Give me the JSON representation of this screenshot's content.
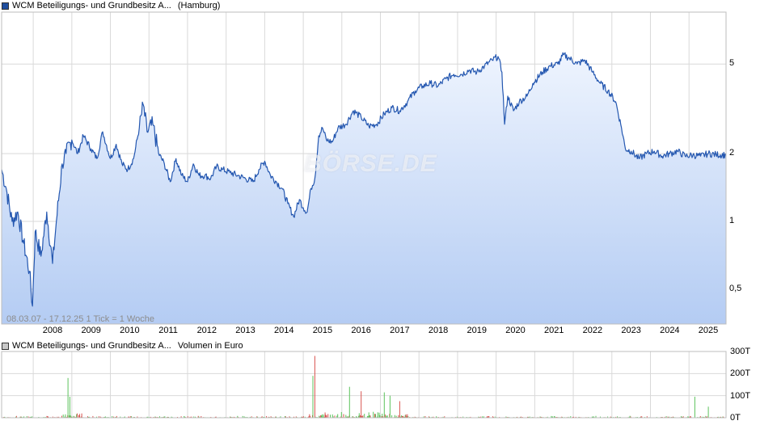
{
  "price_legend": {
    "title": "WCM Beteiligungs- und Grundbesitz A...",
    "exchange": "(Hamburg)",
    "color": "#1f4e9e"
  },
  "volume_legend": {
    "title": "WCM Beteiligungs- und Grundbesitz A...",
    "label": "Volumen in Euro",
    "color": "#c8c8c8"
  },
  "range_label": "08.03.07 - 17.12.25    1 Tick = 1 Woche",
  "watermark": "BÖRSE.DE",
  "colors": {
    "line": "#2457b0",
    "fill_top": "#e9f1fd",
    "fill_bottom": "#b5cdf3",
    "grid": "#d9d9d9",
    "vol_up": "#5cc35c",
    "vol_down": "#d9534f"
  },
  "chart_data": [
    {
      "type": "area",
      "title": "WCM Beteiligungs- und Grundbesitz A... (Hamburg)",
      "scale": "log",
      "ylim": [
        0.35,
        8.5
      ],
      "xlim": [
        2007.18,
        2025.96
      ],
      "y_ticks": [
        {
          "value": 0.5,
          "label": "0,5"
        },
        {
          "value": 1,
          "label": "1"
        },
        {
          "value": 2,
          "label": "2"
        },
        {
          "value": 5,
          "label": "5"
        }
      ],
      "x_ticks": [
        "2008",
        "2009",
        "2010",
        "2011",
        "2012",
        "2013",
        "2014",
        "2015",
        "2016",
        "2017",
        "2018",
        "2019",
        "2020",
        "2021",
        "2022",
        "2023",
        "2024",
        "2025"
      ],
      "grid": true,
      "series": [
        {
          "name": "WCM Beteiligungs- und Grundbesitz A...",
          "points": [
            [
              2007.18,
              1.7
            ],
            [
              2007.3,
              1.4
            ],
            [
              2007.45,
              1.0
            ],
            [
              2007.6,
              1.1
            ],
            [
              2007.75,
              0.8
            ],
            [
              2007.9,
              0.6
            ],
            [
              2007.98,
              0.42
            ],
            [
              2008.05,
              0.9
            ],
            [
              2008.2,
              0.7
            ],
            [
              2008.35,
              1.1
            ],
            [
              2008.5,
              0.65
            ],
            [
              2008.6,
              1.0
            ],
            [
              2008.75,
              1.8
            ],
            [
              2008.85,
              2.0
            ],
            [
              2009.0,
              2.3
            ],
            [
              2009.15,
              2.0
            ],
            [
              2009.3,
              2.4
            ],
            [
              2009.5,
              2.1
            ],
            [
              2009.65,
              1.9
            ],
            [
              2009.8,
              2.5
            ],
            [
              2010.0,
              1.9
            ],
            [
              2010.15,
              2.2
            ],
            [
              2010.3,
              1.8
            ],
            [
              2010.45,
              1.7
            ],
            [
              2010.6,
              1.9
            ],
            [
              2010.75,
              2.6
            ],
            [
              2010.85,
              3.3
            ],
            [
              2010.95,
              2.5
            ],
            [
              2011.1,
              2.7
            ],
            [
              2011.25,
              2.0
            ],
            [
              2011.4,
              1.8
            ],
            [
              2011.55,
              1.5
            ],
            [
              2011.7,
              1.9
            ],
            [
              2011.85,
              1.6
            ],
            [
              2012.0,
              1.5
            ],
            [
              2012.15,
              1.8
            ],
            [
              2012.3,
              1.6
            ],
            [
              2012.45,
              1.6
            ],
            [
              2012.6,
              1.55
            ],
            [
              2012.75,
              1.75
            ],
            [
              2012.9,
              1.7
            ],
            [
              2013.1,
              1.65
            ],
            [
              2013.3,
              1.6
            ],
            [
              2013.5,
              1.55
            ],
            [
              2013.7,
              1.5
            ],
            [
              2013.85,
              1.7
            ],
            [
              2014.0,
              1.85
            ],
            [
              2014.15,
              1.6
            ],
            [
              2014.3,
              1.5
            ],
            [
              2014.45,
              1.4
            ],
            [
              2014.6,
              1.2
            ],
            [
              2014.75,
              1.05
            ],
            [
              2014.9,
              1.25
            ],
            [
              2015.0,
              1.15
            ],
            [
              2015.1,
              1.1
            ],
            [
              2015.2,
              1.4
            ],
            [
              2015.3,
              1.55
            ],
            [
              2015.4,
              2.4
            ],
            [
              2015.5,
              2.6
            ],
            [
              2015.6,
              2.3
            ],
            [
              2015.75,
              2.25
            ],
            [
              2015.9,
              2.6
            ],
            [
              2016.1,
              2.7
            ],
            [
              2016.3,
              3.1
            ],
            [
              2016.5,
              2.9
            ],
            [
              2016.7,
              2.65
            ],
            [
              2016.9,
              2.7
            ],
            [
              2017.1,
              3.0
            ],
            [
              2017.3,
              3.2
            ],
            [
              2017.5,
              3.1
            ],
            [
              2017.7,
              3.4
            ],
            [
              2017.9,
              3.8
            ],
            [
              2018.1,
              4.0
            ],
            [
              2018.3,
              4.1
            ],
            [
              2018.5,
              4.0
            ],
            [
              2018.7,
              4.3
            ],
            [
              2018.9,
              4.5
            ],
            [
              2019.1,
              4.5
            ],
            [
              2019.3,
              4.7
            ],
            [
              2019.5,
              4.6
            ],
            [
              2019.7,
              4.9
            ],
            [
              2019.9,
              5.2
            ],
            [
              2020.05,
              5.4
            ],
            [
              2020.15,
              4.6
            ],
            [
              2020.22,
              2.7
            ],
            [
              2020.3,
              3.6
            ],
            [
              2020.45,
              3.1
            ],
            [
              2020.6,
              3.4
            ],
            [
              2020.8,
              3.6
            ],
            [
              2020.95,
              4.1
            ],
            [
              2021.2,
              4.6
            ],
            [
              2021.4,
              4.9
            ],
            [
              2021.6,
              5.0
            ],
            [
              2021.75,
              5.5
            ],
            [
              2021.9,
              5.3
            ],
            [
              2022.1,
              5.0
            ],
            [
              2022.3,
              5.2
            ],
            [
              2022.5,
              4.6
            ],
            [
              2022.7,
              4.1
            ],
            [
              2022.9,
              3.8
            ],
            [
              2023.1,
              3.4
            ],
            [
              2023.25,
              2.6
            ],
            [
              2023.35,
              2.1
            ],
            [
              2023.5,
              2.05
            ],
            [
              2023.7,
              1.9
            ],
            [
              2023.9,
              2.0
            ],
            [
              2024.1,
              2.05
            ],
            [
              2024.3,
              1.95
            ],
            [
              2024.5,
              2.0
            ],
            [
              2024.7,
              2.05
            ],
            [
              2024.9,
              1.95
            ],
            [
              2025.1,
              1.97
            ],
            [
              2025.3,
              1.95
            ],
            [
              2025.5,
              2.0
            ],
            [
              2025.7,
              1.98
            ],
            [
              2025.96,
              1.97
            ]
          ]
        }
      ]
    },
    {
      "type": "bar",
      "title": "WCM Beteiligungs- und Grundbesitz A... Volumen in Euro",
      "ylim": [
        0,
        300000
      ],
      "y_ticks": [
        {
          "value": 0,
          "label": "0T"
        },
        {
          "value": 100000,
          "label": "100T"
        },
        {
          "value": 200000,
          "label": "200T"
        },
        {
          "value": 300000,
          "label": "300T"
        }
      ],
      "grid": true,
      "spikes": [
        {
          "x": 2008.9,
          "value": 180000
        },
        {
          "x": 2008.95,
          "value": 95000
        },
        {
          "x": 2015.3,
          "value": 280000
        },
        {
          "x": 2015.25,
          "value": 190000
        },
        {
          "x": 2016.2,
          "value": 140000
        },
        {
          "x": 2016.5,
          "value": 120000
        },
        {
          "x": 2017.1,
          "value": 115000
        },
        {
          "x": 2017.25,
          "value": 100000
        },
        {
          "x": 2017.5,
          "value": 75000
        },
        {
          "x": 2025.15,
          "value": 95000
        },
        {
          "x": 2025.5,
          "value": 50000
        }
      ]
    }
  ]
}
